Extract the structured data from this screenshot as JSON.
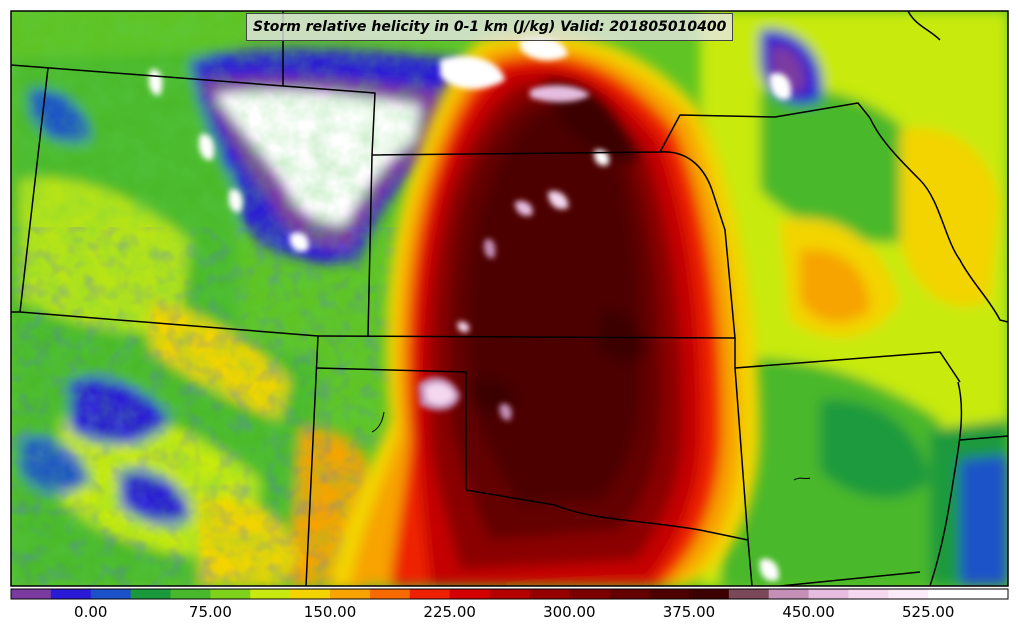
{
  "title": "Storm relative helicity in 0-1 km (J/kg) Valid: 201805010400",
  "colorbar": {
    "tick_labels": [
      "0.00",
      "75.00",
      "150.00",
      "225.00",
      "300.00",
      "375.00",
      "450.00",
      "525.00"
    ],
    "tick_values": [
      0,
      75,
      150,
      225,
      300,
      375,
      450,
      525
    ],
    "min": -50,
    "max": 575,
    "step": 25,
    "colors": [
      "#7b3aa0",
      "#2a1ad6",
      "#1c52c8",
      "#1a9a3c",
      "#49b82c",
      "#7fd21c",
      "#c8ea10",
      "#f3d400",
      "#f7a300",
      "#f76a00",
      "#ee2000",
      "#d40000",
      "#b50000",
      "#970000",
      "#7d0000",
      "#640000",
      "#4e0000",
      "#3c0000",
      "#7a4858",
      "#c490b8",
      "#e6bde0",
      "#f5d8f0",
      "#fbeaf8",
      "#ffffff",
      "#ffffff"
    ]
  }
}
